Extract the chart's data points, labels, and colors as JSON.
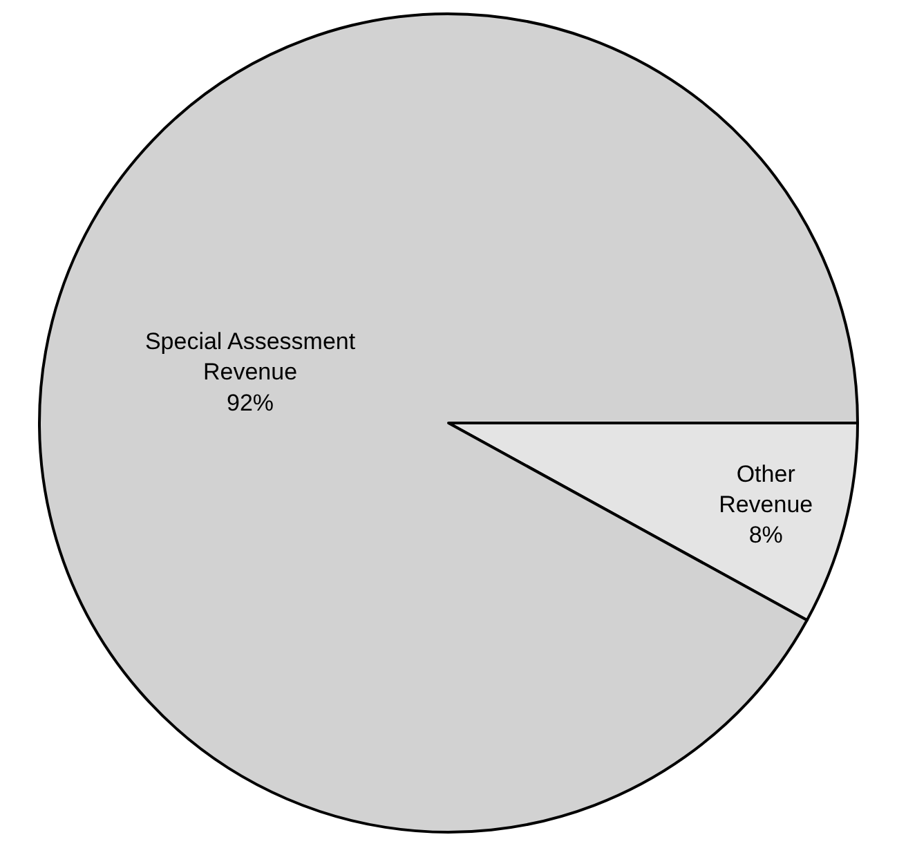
{
  "chart_data": {
    "type": "pie",
    "categories": [
      "Other Revenue",
      "Special Assessment Revenue"
    ],
    "values": [
      8,
      92
    ],
    "colors": [
      "#e4e4e4",
      "#d2d2d2"
    ],
    "value_labels": [
      "8%",
      "92%"
    ],
    "legend": false
  }
}
